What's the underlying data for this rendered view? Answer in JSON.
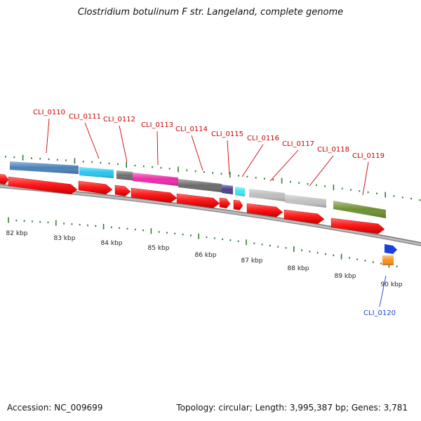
{
  "title": "Clostridium botulinum F str. Langeland, complete genome",
  "footer": {
    "accession": "Accession: NC_009699",
    "summary": "Topology: circular; Length: 3,995,387 bp; Genes: 3,781"
  },
  "scale_labels": [
    "82 kbp",
    "83 kbp",
    "84 kbp",
    "85 kbp",
    "86 kbp",
    "87 kbp",
    "88 kbp",
    "89 kbp",
    "90 kbp"
  ],
  "genes": [
    {
      "id": "CLI_0110",
      "color": "#4a80b8"
    },
    {
      "id": "CLI_0111",
      "color": "#26c6f0"
    },
    {
      "id": "CLI_0112",
      "color": "#6e6e6e"
    },
    {
      "id": "CLI_0113",
      "color": "#ee2aa8"
    },
    {
      "id": "CLI_0114",
      "color": "#6a6a6a"
    },
    {
      "id": "CLI_0115",
      "color": "#4a3f8c"
    },
    {
      "id": "CLI_0116",
      "color": "#3ae8f4"
    },
    {
      "id": "CLI_0117",
      "color": "#bdbdbd"
    },
    {
      "id": "CLI_0118",
      "color": "#c2c2c2"
    },
    {
      "id": "CLI_0119",
      "color": "#6f9030"
    },
    {
      "id": "CLI_0120",
      "color": "#f7931e"
    }
  ],
  "colors": {
    "cds": "#ff1a1a",
    "gene_label": "#cc0000",
    "cli0120_label": "#1a3fd0",
    "tick": "#2e7d32",
    "backbone": "#8a8a8a",
    "blue_marker": "#1a3fe0"
  }
}
